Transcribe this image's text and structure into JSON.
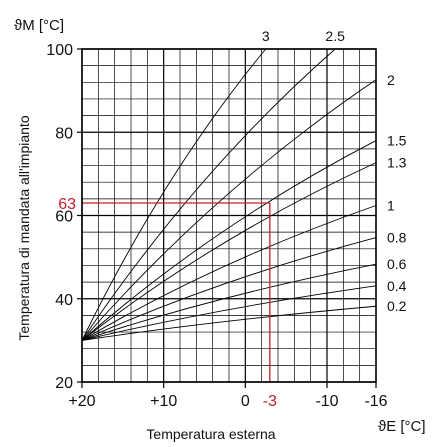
{
  "chart_data": {
    "type": "line",
    "y_axis_title": "ϑM [°C]",
    "x_axis_title": "ϑE [°C]",
    "xlabel": "Temperatura esterna",
    "ylabel": "Temperatura di mandata all'impianto",
    "xlim": [
      20,
      -16
    ],
    "ylim": [
      20,
      100
    ],
    "x_ticks": [
      {
        "value": 20,
        "label": "+20"
      },
      {
        "value": 10,
        "label": "+10"
      },
      {
        "value": 0,
        "label": "0"
      },
      {
        "value": -10,
        "label": "-10"
      },
      {
        "value": -16,
        "label": "-16"
      }
    ],
    "y_ticks": [
      {
        "value": 20,
        "label": "20"
      },
      {
        "value": 40,
        "label": "40"
      },
      {
        "value": 60,
        "label": "60"
      },
      {
        "value": 80,
        "label": "80"
      },
      {
        "value": 100,
        "label": "100"
      }
    ],
    "grid": true,
    "origin": {
      "x": 20,
      "y": 30
    },
    "series": [
      {
        "name": "0.2",
        "x": [
          20,
          -16
        ],
        "y": [
          30,
          38.2
        ]
      },
      {
        "name": "0.4",
        "x": [
          20,
          -16
        ],
        "y": [
          30,
          43.1
        ]
      },
      {
        "name": "0.6",
        "x": [
          20,
          -16
        ],
        "y": [
          30,
          48.3
        ]
      },
      {
        "name": "0.8",
        "x": [
          20,
          -16
        ],
        "y": [
          30,
          54.7
        ]
      },
      {
        "name": "1",
        "x": [
          20,
          -16
        ],
        "y": [
          30,
          62.4
        ]
      },
      {
        "name": "1.3",
        "x": [
          20,
          -16
        ],
        "y": [
          30,
          72.7
        ]
      },
      {
        "name": "1.5",
        "x": [
          20,
          -16
        ],
        "y": [
          30,
          78.0
        ]
      },
      {
        "name": "2",
        "x": [
          20,
          -16
        ],
        "y": [
          30,
          92.6
        ]
      },
      {
        "name": "2.5",
        "x": [
          20,
          -11.0
        ],
        "y": [
          30,
          100
        ]
      },
      {
        "name": "3",
        "x": [
          20,
          -2.5
        ],
        "y": [
          30,
          100
        ]
      }
    ],
    "annotations": [
      {
        "type": "vertical",
        "x": -3,
        "label": "-3",
        "color": "#c0202a",
        "y_to": 63
      },
      {
        "type": "horizontal",
        "y": 63,
        "label": "63",
        "color": "#c0202a",
        "x_to": -3
      }
    ]
  }
}
